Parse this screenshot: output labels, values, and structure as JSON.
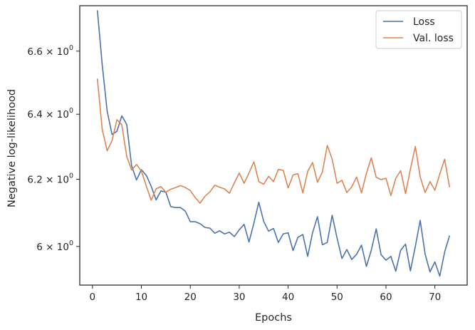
{
  "chart_data": {
    "type": "line",
    "xlabel": "Epochs",
    "ylabel": "Negative log-likelihood",
    "xlim": [
      -2.6,
      76.6
    ],
    "ylim": [
      5.888,
      6.748
    ],
    "y_scale": "log",
    "grid": false,
    "legend_position": "top-right",
    "x_ticks": [
      0,
      10,
      20,
      30,
      40,
      50,
      60,
      70
    ],
    "x_tick_labels": [
      "0",
      "10",
      "20",
      "30",
      "40",
      "50",
      "60",
      "70"
    ],
    "y_ticks": [
      {
        "value": 6.0,
        "base": "6 × 10",
        "exp": "0"
      },
      {
        "value": 6.2,
        "base": "6.2 × 10",
        "exp": "0"
      },
      {
        "value": 6.4,
        "base": "6.4 × 10",
        "exp": "0"
      },
      {
        "value": 6.6,
        "base": "6.6 × 10",
        "exp": "0"
      }
    ],
    "series": [
      {
        "name": "Loss",
        "color": "#4c72b0",
        "x": [
          1,
          2,
          3,
          4,
          5,
          6,
          7,
          8,
          9,
          10,
          11,
          12,
          13,
          14,
          15,
          16,
          17,
          18,
          19,
          20,
          21,
          22,
          23,
          24,
          25,
          26,
          27,
          28,
          29,
          30,
          31,
          32,
          33,
          34,
          35,
          36,
          37,
          38,
          39,
          40,
          41,
          42,
          43,
          44,
          45,
          46,
          47,
          48,
          49,
          50,
          51,
          52,
          53,
          54,
          55,
          56,
          57,
          58,
          59,
          60,
          61,
          62,
          63,
          64,
          65,
          66,
          67,
          68,
          69,
          70,
          71,
          72,
          73
        ],
        "values": [
          6.733,
          6.555,
          6.41,
          6.337,
          6.347,
          6.395,
          6.368,
          6.241,
          6.198,
          6.229,
          6.212,
          6.179,
          6.138,
          6.165,
          6.161,
          6.118,
          6.115,
          6.115,
          6.104,
          6.073,
          6.073,
          6.067,
          6.056,
          6.054,
          6.039,
          6.046,
          6.037,
          6.042,
          6.029,
          6.049,
          6.065,
          6.013,
          6.069,
          6.131,
          6.074,
          6.045,
          6.053,
          6.012,
          6.037,
          6.04,
          5.988,
          6.027,
          6.035,
          5.971,
          6.041,
          6.088,
          6.005,
          6.012,
          6.092,
          6.025,
          5.965,
          5.991,
          5.962,
          5.977,
          6.004,
          5.942,
          5.989,
          6.052,
          5.976,
          5.96,
          5.971,
          5.928,
          5.989,
          6.007,
          5.929,
          6.0,
          6.077,
          5.978,
          5.926,
          5.955,
          5.914,
          5.984,
          6.032
        ]
      },
      {
        "name": "Val. loss",
        "color": "#dd8452",
        "x": [
          1,
          2,
          3,
          4,
          5,
          6,
          7,
          8,
          9,
          10,
          11,
          12,
          13,
          14,
          15,
          16,
          17,
          18,
          19,
          20,
          21,
          22,
          23,
          24,
          25,
          26,
          27,
          28,
          29,
          30,
          31,
          32,
          33,
          34,
          35,
          36,
          37,
          38,
          39,
          40,
          41,
          42,
          43,
          44,
          45,
          46,
          47,
          48,
          49,
          50,
          51,
          52,
          53,
          54,
          55,
          56,
          57,
          58,
          59,
          60,
          61,
          62,
          63,
          64,
          65,
          66,
          67,
          68,
          69,
          70,
          71,
          72,
          73
        ],
        "values": [
          6.512,
          6.352,
          6.287,
          6.318,
          6.383,
          6.367,
          6.27,
          6.228,
          6.245,
          6.225,
          6.18,
          6.137,
          6.171,
          6.178,
          6.161,
          6.17,
          6.175,
          6.181,
          6.175,
          6.166,
          6.145,
          6.128,
          6.149,
          6.162,
          6.182,
          6.176,
          6.171,
          6.158,
          6.189,
          6.219,
          6.188,
          6.219,
          6.253,
          6.193,
          6.185,
          6.209,
          6.193,
          6.23,
          6.227,
          6.174,
          6.213,
          6.217,
          6.159,
          6.224,
          6.251,
          6.191,
          6.222,
          6.303,
          6.261,
          6.188,
          6.197,
          6.16,
          6.177,
          6.207,
          6.159,
          6.218,
          6.265,
          6.206,
          6.199,
          6.203,
          6.151,
          6.203,
          6.226,
          6.157,
          6.231,
          6.3,
          6.207,
          6.16,
          6.193,
          6.167,
          6.216,
          6.261,
          6.176
        ]
      }
    ]
  }
}
